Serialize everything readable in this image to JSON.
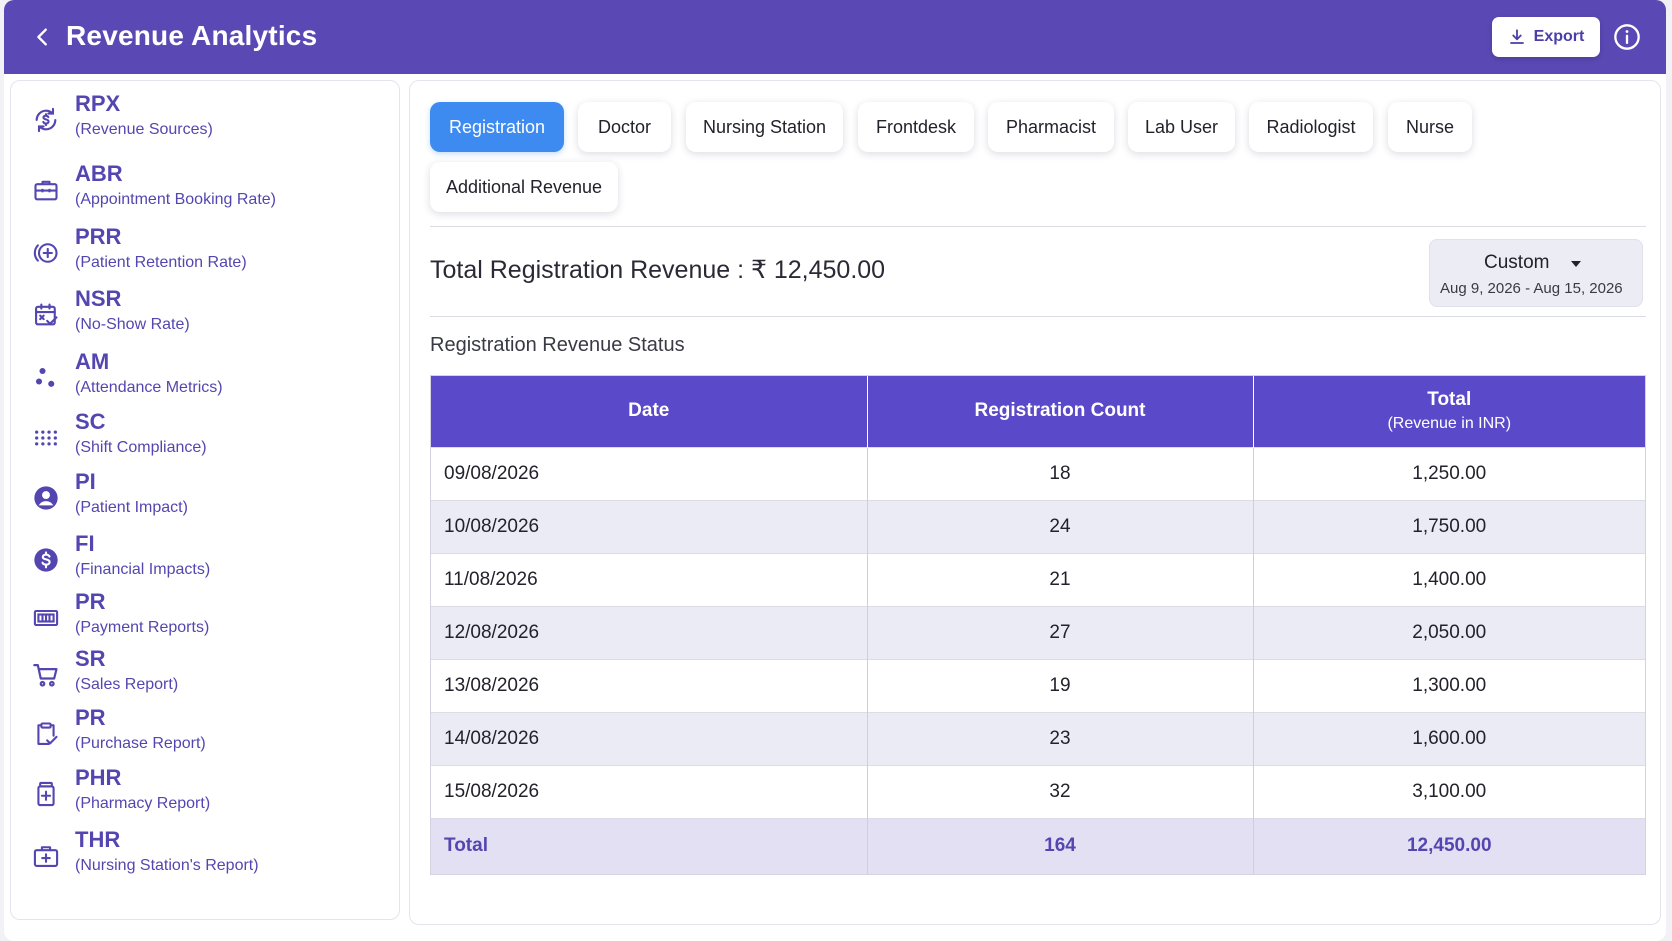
{
  "header": {
    "title": "Revenue Analytics",
    "export_label": "Export"
  },
  "colors": {
    "brand": "#5a49b5",
    "active_tab": "#3d8af0",
    "table_header": "#5a49c8"
  },
  "sidebar": {
    "items": [
      {
        "abbr": "RPX",
        "desc": "(Revenue Sources)",
        "icon": "revenue-cycle-icon"
      },
      {
        "abbr": "ABR",
        "desc": "(Appointment Booking Rate)",
        "icon": "briefcase-icon"
      },
      {
        "abbr": "PRR",
        "desc": "(Patient Retention Rate)",
        "icon": "retention-plus-icon"
      },
      {
        "abbr": "NSR",
        "desc": "(No-Show Rate)",
        "icon": "calendar-check-icon"
      },
      {
        "abbr": "AM",
        "desc": "(Attendance Metrics)",
        "icon": "dots-cluster-icon"
      },
      {
        "abbr": "SC",
        "desc": "(Shift Compliance)",
        "icon": "grid-dots-icon"
      },
      {
        "abbr": "PI",
        "desc": "(Patient Impact)",
        "icon": "user-circle-icon"
      },
      {
        "abbr": "FI",
        "desc": "(Financial Impacts)",
        "icon": "dollar-circle-icon"
      },
      {
        "abbr": "PR",
        "desc": "(Payment Reports)",
        "icon": "payment-icon"
      },
      {
        "abbr": "SR",
        "desc": "(Sales Report)",
        "icon": "cart-icon"
      },
      {
        "abbr": "PR",
        "desc": "(Purchase Report)",
        "icon": "clipboard-check-icon"
      },
      {
        "abbr": "PHR",
        "desc": "(Pharmacy Report)",
        "icon": "medicine-icon"
      },
      {
        "abbr": "THR",
        "desc": "(Nursing Station's Report)",
        "icon": "medical-kit-icon"
      }
    ]
  },
  "tabs": [
    {
      "label": "Registration",
      "active": true
    },
    {
      "label": "Doctor"
    },
    {
      "label": "Nursing Station"
    },
    {
      "label": "Frontdesk"
    },
    {
      "label": "Pharmacist"
    },
    {
      "label": "Lab User"
    },
    {
      "label": "Radiologist"
    },
    {
      "label": "Nurse"
    },
    {
      "label": "Additional Revenue"
    }
  ],
  "summary": {
    "total_label": "Total Registration Revenue : ₹ 12,450.00"
  },
  "date_filter": {
    "label": "Custom",
    "range": "Aug 9, 2026 - Aug 15, 2026"
  },
  "section_title": "Registration Revenue Status",
  "table": {
    "headers": {
      "date": "Date",
      "count": "Registration Count",
      "total": "Total",
      "total_sub": "(Revenue in INR)"
    },
    "rows": [
      {
        "date": "09/08/2026",
        "count": "18",
        "total": "1,250.00"
      },
      {
        "date": "10/08/2026",
        "count": "24",
        "total": "1,750.00"
      },
      {
        "date": "11/08/2026",
        "count": "21",
        "total": "1,400.00"
      },
      {
        "date": "12/08/2026",
        "count": "27",
        "total": "2,050.00"
      },
      {
        "date": "13/08/2026",
        "count": "19",
        "total": "1,300.00"
      },
      {
        "date": "14/08/2026",
        "count": "23",
        "total": "1,600.00"
      },
      {
        "date": "15/08/2026",
        "count": "32",
        "total": "3,100.00"
      }
    ],
    "footer": {
      "label": "Total",
      "count": "164",
      "total": "12,450.00"
    }
  }
}
